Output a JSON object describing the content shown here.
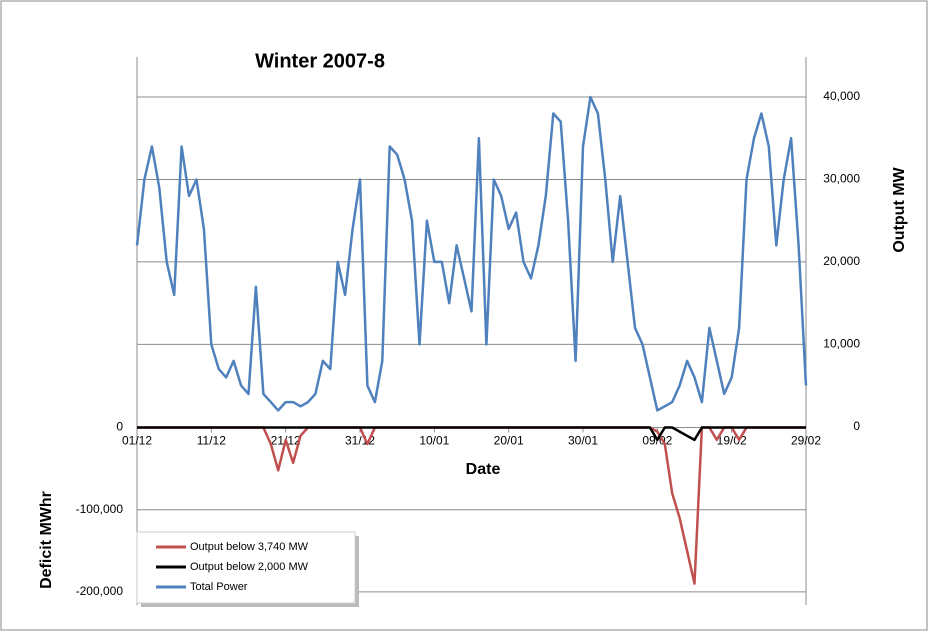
{
  "chart_data": {
    "type": "line",
    "title": "Winter 2007-8",
    "x_label": "Date",
    "y_label": "Deficit MWhr",
    "y2_label": "Output MW",
    "x": [
      "01/12",
      "02/12",
      "03/12",
      "04/12",
      "05/12",
      "06/12",
      "07/12",
      "08/12",
      "09/12",
      "10/12",
      "11/12",
      "12/12",
      "13/12",
      "14/12",
      "15/12",
      "16/12",
      "17/12",
      "18/12",
      "19/12",
      "20/12",
      "21/12",
      "22/12",
      "23/12",
      "24/12",
      "25/12",
      "26/12",
      "27/12",
      "28/12",
      "29/12",
      "30/12",
      "31/12",
      "01/01",
      "02/01",
      "03/01",
      "04/01",
      "05/01",
      "06/01",
      "07/01",
      "08/01",
      "09/01",
      "10/01",
      "11/01",
      "12/01",
      "13/01",
      "14/01",
      "15/01",
      "16/01",
      "17/01",
      "18/01",
      "19/01",
      "20/01",
      "21/01",
      "22/01",
      "23/01",
      "24/01",
      "25/01",
      "26/01",
      "27/01",
      "28/01",
      "29/01",
      "30/01",
      "31/01",
      "01/02",
      "02/02",
      "03/02",
      "04/02",
      "05/02",
      "06/02",
      "07/02",
      "08/02",
      "09/02",
      "10/02",
      "11/02",
      "12/02",
      "13/02",
      "14/02",
      "15/02",
      "16/02",
      "17/02",
      "18/02",
      "19/02",
      "20/02",
      "21/02",
      "22/02",
      "23/02",
      "24/02",
      "25/02",
      "26/02",
      "27/02",
      "28/02",
      "29/02"
    ],
    "xticks": [
      "01/12",
      "11/12",
      "21/12",
      "31/12",
      "10/01",
      "20/01",
      "30/01",
      "09/02",
      "19/02",
      "29/02"
    ],
    "ylim": [
      -216000,
      451000
    ],
    "yticks": [
      {
        "value": -200000,
        "label": "-200,000"
      },
      {
        "value": -100000,
        "label": "-100,000"
      },
      0
    ],
    "y2lim": [
      -21600,
      44850
    ],
    "y2ticks": [
      0,
      {
        "value": 10000,
        "label": "10,000"
      },
      {
        "value": 20000,
        "label": "20,000"
      },
      {
        "value": 30000,
        "label": "30,000"
      },
      {
        "value": 40000,
        "label": "40,000"
      }
    ],
    "grid": true,
    "legend": "bottom-left",
    "series": [
      {
        "name": "Output below 3,740 MW",
        "color": "#c0504d",
        "values": [
          0,
          0,
          0,
          0,
          0,
          0,
          0,
          0,
          0,
          0,
          0,
          0,
          0,
          0,
          0,
          0,
          0,
          0,
          -20000,
          -52000,
          -15000,
          -43000,
          -10000,
          0,
          0,
          0,
          0,
          0,
          0,
          0,
          0,
          -20000,
          0,
          0,
          0,
          0,
          0,
          0,
          0,
          0,
          0,
          0,
          0,
          0,
          0,
          0,
          0,
          0,
          0,
          0,
          0,
          0,
          0,
          0,
          0,
          0,
          0,
          0,
          0,
          0,
          0,
          0,
          0,
          0,
          0,
          0,
          0,
          0,
          0,
          0,
          -5000,
          -20000,
          -80000,
          -110000,
          -150000,
          -190000,
          0,
          0,
          -15000,
          0,
          0,
          -15000,
          0,
          0,
          0,
          0,
          0,
          0,
          0,
          0,
          0
        ]
      },
      {
        "name": "Output below 2,000 MW",
        "color": "#000000",
        "values": [
          0,
          0,
          0,
          0,
          0,
          0,
          0,
          0,
          0,
          0,
          0,
          0,
          0,
          0,
          0,
          0,
          0,
          0,
          0,
          0,
          0,
          0,
          0,
          0,
          0,
          0,
          0,
          0,
          0,
          0,
          0,
          0,
          0,
          0,
          0,
          0,
          0,
          0,
          0,
          0,
          0,
          0,
          0,
          0,
          0,
          0,
          0,
          0,
          0,
          0,
          0,
          0,
          0,
          0,
          0,
          0,
          0,
          0,
          0,
          0,
          0,
          0,
          0,
          0,
          0,
          0,
          0,
          0,
          0,
          0,
          -15000,
          0,
          0,
          -5000,
          -10000,
          -15000,
          0,
          0,
          0,
          0,
          0,
          0,
          0,
          0,
          0,
          0,
          0,
          0,
          0,
          0,
          0
        ]
      },
      {
        "name": "Total Power",
        "color": "#4f81bd",
        "axis": "y2",
        "values": [
          22000,
          30000,
          34000,
          29000,
          20000,
          16000,
          34000,
          28000,
          30000,
          24000,
          10000,
          7000,
          6000,
          8000,
          5000,
          4000,
          17000,
          4000,
          3000,
          2000,
          3000,
          3000,
          2500,
          3000,
          4000,
          8000,
          7000,
          20000,
          16000,
          24000,
          30000,
          5000,
          3000,
          8000,
          34000,
          33000,
          30000,
          25000,
          10000,
          25000,
          20000,
          20000,
          15000,
          22000,
          18000,
          14000,
          35000,
          10000,
          30000,
          28000,
          24000,
          26000,
          20000,
          18000,
          22000,
          28000,
          38000,
          37000,
          25000,
          8000,
          34000,
          40000,
          38000,
          30000,
          20000,
          28000,
          20000,
          12000,
          10000,
          6000,
          2000,
          2500,
          3000,
          5000,
          8000,
          6000,
          3000,
          12000,
          8000,
          4000,
          6000,
          12000,
          30000,
          35000,
          38000,
          34000,
          22000,
          30000,
          35000,
          22000,
          5000
        ]
      }
    ]
  }
}
